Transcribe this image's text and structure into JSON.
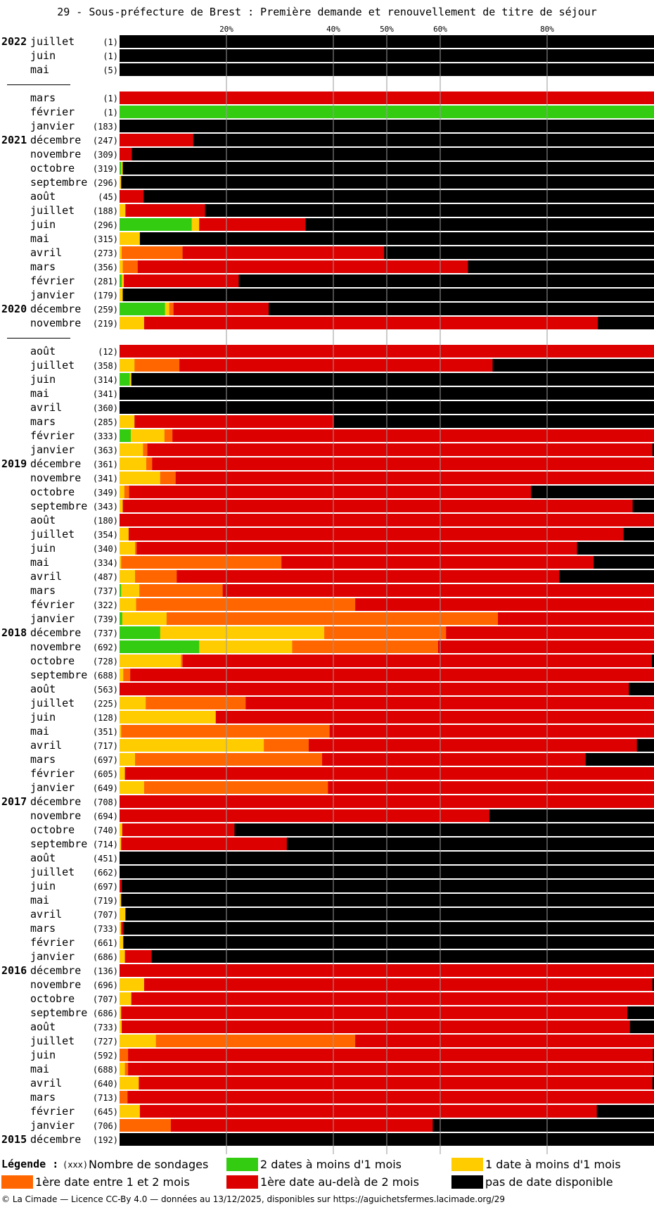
{
  "title": "29 - Sous-préfecture de Brest : Première demande et renouvellement de titre de séjour",
  "colors": {
    "vert": "#33cc11",
    "jaune": "#ffcc00",
    "orange": "#ff6600",
    "rouge": "#dd0000",
    "noir": "#000000"
  },
  "legend": {
    "title": "Légende :",
    "count_note": "(xxx)",
    "count_label": "Nombre de sondages",
    "items": [
      {
        "key": "vert",
        "label": "2 dates à moins d'1 mois"
      },
      {
        "key": "jaune",
        "label": "1 date à moins d'1 mois"
      },
      {
        "key": "orange",
        "label": "1ère date entre 1 et 2 mois"
      },
      {
        "key": "rouge",
        "label": "1ère date au-delà de 2 mois"
      },
      {
        "key": "noir",
        "label": "pas de date disponible"
      }
    ]
  },
  "footer": "© La Cimade — Licence CC-By 4.0 — données au 13/12/2025, disponibles sur https://aguichetsfermes.lacimade.org/29",
  "chart_data": {
    "type": "bar",
    "orientation": "horizontal",
    "stacked": true,
    "x_ticks": [
      "20%",
      "40%",
      "50%",
      "60%",
      "80%"
    ],
    "x_tick_values": [
      20,
      40,
      50,
      60,
      80
    ],
    "xlim": [
      0,
      100
    ],
    "series_order": [
      "vert",
      "jaune",
      "orange",
      "rouge",
      "noir"
    ],
    "rows": [
      {
        "year": "2022",
        "month": "juillet",
        "n": "(1)",
        "v": [
          0,
          0,
          0,
          0,
          100
        ]
      },
      {
        "year": "",
        "month": "juin",
        "n": "(1)",
        "v": [
          0,
          0,
          0,
          0,
          100
        ]
      },
      {
        "year": "",
        "month": "mai",
        "n": "(5)",
        "v": [
          0,
          0,
          0,
          0,
          100
        ]
      },
      {
        "gap": true
      },
      {
        "year": "",
        "month": "mars",
        "n": "(1)",
        "v": [
          0,
          0,
          0,
          100,
          0
        ]
      },
      {
        "year": "",
        "month": "février",
        "n": "(1)",
        "v": [
          100,
          0,
          0,
          0,
          0
        ]
      },
      {
        "year": "",
        "month": "janvier",
        "n": "(183)",
        "v": [
          0,
          0,
          0,
          0,
          100
        ]
      },
      {
        "year": "2021",
        "month": "décembre",
        "n": "(247)",
        "v": [
          0,
          0,
          0,
          13.8,
          86.2
        ]
      },
      {
        "year": "",
        "month": "novembre",
        "n": "(309)",
        "v": [
          0,
          0,
          0,
          2.3,
          97.7
        ]
      },
      {
        "year": "",
        "month": "octobre",
        "n": "(319)",
        "v": [
          0.3,
          0.3,
          0,
          0,
          99.4
        ]
      },
      {
        "year": "",
        "month": "septembre",
        "n": "(296)",
        "v": [
          0,
          0.3,
          0,
          0,
          99.7
        ]
      },
      {
        "year": "",
        "month": "août",
        "n": "(45)",
        "v": [
          0,
          0,
          0,
          4.5,
          95.5
        ]
      },
      {
        "year": "",
        "month": "juillet",
        "n": "(188)",
        "v": [
          0,
          1.1,
          0,
          14.9,
          84
        ]
      },
      {
        "year": "",
        "month": "juin",
        "n": "(296)",
        "v": [
          13.5,
          1.4,
          0,
          19.9,
          65.2
        ]
      },
      {
        "year": "",
        "month": "mai",
        "n": "(315)",
        "v": [
          0,
          3.8,
          0,
          0,
          96.2
        ]
      },
      {
        "year": "",
        "month": "avril",
        "n": "(273)",
        "v": [
          0,
          0.4,
          11.4,
          37.7,
          50.5
        ]
      },
      {
        "year": "",
        "month": "mars",
        "n": "(356)",
        "v": [
          0,
          0.6,
          2.8,
          61.8,
          34.8
        ]
      },
      {
        "year": "",
        "month": "février",
        "n": "(281)",
        "v": [
          0.4,
          0.4,
          0,
          21.5,
          77.7
        ]
      },
      {
        "year": "",
        "month": "janvier",
        "n": "(179)",
        "v": [
          0,
          0.6,
          0,
          0,
          99.4
        ]
      },
      {
        "year": "2020",
        "month": "décembre",
        "n": "(259)",
        "v": [
          8.5,
          0.8,
          0.8,
          17.8,
          72.1
        ]
      },
      {
        "year": "",
        "month": "novembre",
        "n": "(219)",
        "v": [
          0,
          4.6,
          0,
          84.9,
          10.5
        ]
      },
      {
        "gap": true
      },
      {
        "year": "",
        "month": "août",
        "n": "(12)",
        "v": [
          0,
          0,
          0,
          100,
          0
        ]
      },
      {
        "year": "",
        "month": "juillet",
        "n": "(358)",
        "v": [
          0,
          2.8,
          8.4,
          58.6,
          30.2
        ]
      },
      {
        "year": "",
        "month": "juin",
        "n": "(314)",
        "v": [
          1.9,
          0.3,
          0,
          0,
          97.8
        ]
      },
      {
        "year": "",
        "month": "mai",
        "n": "(341)",
        "v": [
          0,
          0,
          0,
          0,
          100
        ]
      },
      {
        "year": "",
        "month": "avril",
        "n": "(360)",
        "v": [
          0,
          0,
          0,
          0,
          100
        ]
      },
      {
        "year": "",
        "month": "mars",
        "n": "(285)",
        "v": [
          0,
          2.8,
          0,
          37.2,
          60
        ]
      },
      {
        "year": "",
        "month": "février",
        "n": "(333)",
        "v": [
          2.1,
          6.3,
          1.5,
          90.1,
          0
        ]
      },
      {
        "year": "",
        "month": "janvier",
        "n": "(363)",
        "v": [
          0,
          4.4,
          0.8,
          94.5,
          0.3
        ]
      },
      {
        "year": "2019",
        "month": "décembre",
        "n": "(361)",
        "v": [
          0,
          5,
          1.1,
          93.9,
          0
        ]
      },
      {
        "year": "",
        "month": "novembre",
        "n": "(341)",
        "v": [
          0,
          7.6,
          2.9,
          89.5,
          0
        ]
      },
      {
        "year": "",
        "month": "octobre",
        "n": "(349)",
        "v": [
          0,
          0.9,
          0.9,
          75.2,
          23
        ]
      },
      {
        "year": "",
        "month": "septembre",
        "n": "(343)",
        "v": [
          0,
          0.6,
          0,
          95.4,
          4
        ]
      },
      {
        "year": "",
        "month": "août",
        "n": "(180)",
        "v": [
          0,
          0,
          0,
          100,
          0
        ]
      },
      {
        "year": "",
        "month": "juillet",
        "n": "(354)",
        "v": [
          0,
          1.7,
          0,
          92.6,
          5.7
        ]
      },
      {
        "year": "",
        "month": "juin",
        "n": "(340)",
        "v": [
          0,
          2.9,
          0.3,
          82.4,
          14.4
        ]
      },
      {
        "year": "",
        "month": "mai",
        "n": "(334)",
        "v": [
          0,
          0.3,
          30,
          58.4,
          11.3
        ]
      },
      {
        "year": "",
        "month": "avril",
        "n": "(487)",
        "v": [
          0,
          2.9,
          7.8,
          71.6,
          17.7
        ]
      },
      {
        "year": "",
        "month": "mars",
        "n": "(737)",
        "v": [
          0.3,
          3.4,
          15.6,
          80.7,
          0
        ]
      },
      {
        "year": "",
        "month": "février",
        "n": "(322)",
        "v": [
          0,
          3.1,
          41,
          55.9,
          0
        ]
      },
      {
        "year": "",
        "month": "janvier",
        "n": "(739)",
        "v": [
          0.5,
          8.3,
          62,
          29.2,
          0
        ]
      },
      {
        "year": "2018",
        "month": "décembre",
        "n": "(737)",
        "v": [
          7.6,
          30.7,
          22.8,
          38.9,
          0
        ]
      },
      {
        "year": "",
        "month": "novembre",
        "n": "(692)",
        "v": [
          14.9,
          17.4,
          27.3,
          40.4,
          0
        ]
      },
      {
        "year": "",
        "month": "octobre",
        "n": "(728)",
        "v": [
          0,
          11.5,
          0.3,
          87.8,
          0.4
        ]
      },
      {
        "year": "",
        "month": "septembre",
        "n": "(688)",
        "v": [
          0,
          0.7,
          1.3,
          98,
          0
        ]
      },
      {
        "year": "",
        "month": "août",
        "n": "(563)",
        "v": [
          0,
          0,
          0,
          95.3,
          4.7
        ]
      },
      {
        "year": "",
        "month": "juillet",
        "n": "(225)",
        "v": [
          0,
          4.9,
          18.7,
          76.4,
          0
        ]
      },
      {
        "year": "",
        "month": "juin",
        "n": "(128)",
        "v": [
          0,
          18,
          0,
          82,
          0
        ]
      },
      {
        "year": "",
        "month": "mai",
        "n": "(351)",
        "v": [
          0,
          0.3,
          39,
          60.7,
          0
        ]
      },
      {
        "year": "",
        "month": "avril",
        "n": "(717)",
        "v": [
          0,
          27,
          8.4,
          61.4,
          3.2
        ]
      },
      {
        "year": "",
        "month": "mars",
        "n": "(697)",
        "v": [
          0,
          2.9,
          35,
          49.3,
          12.8
        ]
      },
      {
        "year": "",
        "month": "février",
        "n": "(605)",
        "v": [
          0,
          1,
          0,
          99,
          0
        ]
      },
      {
        "year": "",
        "month": "janvier",
        "n": "(649)",
        "v": [
          0,
          4.6,
          34.4,
          61,
          0
        ]
      },
      {
        "year": "2017",
        "month": "décembre",
        "n": "(708)",
        "v": [
          0,
          0,
          0,
          100,
          0
        ]
      },
      {
        "year": "",
        "month": "novembre",
        "n": "(694)",
        "v": [
          0,
          0,
          0,
          69.2,
          30.8
        ]
      },
      {
        "year": "",
        "month": "octobre",
        "n": "(740)",
        "v": [
          0,
          0.5,
          0,
          21,
          78.5
        ]
      },
      {
        "year": "",
        "month": "septembre",
        "n": "(714)",
        "v": [
          0,
          0.3,
          0,
          31,
          68.7
        ]
      },
      {
        "year": "",
        "month": "août",
        "n": "(451)",
        "v": [
          0,
          0,
          0,
          0,
          100
        ]
      },
      {
        "year": "",
        "month": "juillet",
        "n": "(662)",
        "v": [
          0,
          0,
          0,
          0,
          100
        ]
      },
      {
        "year": "",
        "month": "juin",
        "n": "(697)",
        "v": [
          0,
          0,
          0,
          0.4,
          99.6
        ]
      },
      {
        "year": "",
        "month": "mai",
        "n": "(719)",
        "v": [
          0,
          0.3,
          0,
          0,
          99.7
        ]
      },
      {
        "year": "",
        "month": "avril",
        "n": "(707)",
        "v": [
          0,
          1.1,
          0,
          0,
          98.9
        ]
      },
      {
        "year": "",
        "month": "mars",
        "n": "(733)",
        "v": [
          0,
          0.3,
          0,
          0.4,
          99.3
        ]
      },
      {
        "year": "",
        "month": "février",
        "n": "(661)",
        "v": [
          0,
          0.7,
          0,
          0,
          99.3
        ]
      },
      {
        "year": "",
        "month": "janvier",
        "n": "(686)",
        "v": [
          0,
          1,
          0,
          5,
          94
        ]
      },
      {
        "year": "2016",
        "month": "décembre",
        "n": "(136)",
        "v": [
          0,
          0,
          0,
          100,
          0
        ]
      },
      {
        "year": "",
        "month": "novembre",
        "n": "(696)",
        "v": [
          0,
          4.6,
          0,
          95.1,
          0.3
        ]
      },
      {
        "year": "",
        "month": "octobre",
        "n": "(707)",
        "v": [
          0,
          2.2,
          0,
          97.8,
          0
        ]
      },
      {
        "year": "",
        "month": "septembre",
        "n": "(686)",
        "v": [
          0,
          0.3,
          0,
          94.7,
          5
        ]
      },
      {
        "year": "",
        "month": "août",
        "n": "(733)",
        "v": [
          0,
          0.4,
          0,
          95.1,
          4.5
        ]
      },
      {
        "year": "",
        "month": "juillet",
        "n": "(727)",
        "v": [
          0,
          6.8,
          37.3,
          55.9,
          0
        ]
      },
      {
        "year": "",
        "month": "juin",
        "n": "(592)",
        "v": [
          0,
          0,
          1.6,
          98.2,
          0.2
        ]
      },
      {
        "year": "",
        "month": "mai",
        "n": "(688)",
        "v": [
          0,
          1,
          0.6,
          98.3,
          0.1
        ]
      },
      {
        "year": "",
        "month": "avril",
        "n": "(640)",
        "v": [
          0,
          3.6,
          0,
          96.1,
          0.3
        ]
      },
      {
        "year": "",
        "month": "mars",
        "n": "(713)",
        "v": [
          0,
          0,
          1.5,
          98.5,
          0
        ]
      },
      {
        "year": "",
        "month": "février",
        "n": "(645)",
        "v": [
          0,
          3.8,
          0,
          85.5,
          10.7
        ]
      },
      {
        "year": "",
        "month": "janvier",
        "n": "(706)",
        "v": [
          0,
          0,
          9.6,
          49,
          41.4
        ]
      },
      {
        "year": "2015",
        "month": "décembre",
        "n": "(192)",
        "v": [
          0,
          0,
          0,
          0,
          100
        ]
      }
    ]
  }
}
